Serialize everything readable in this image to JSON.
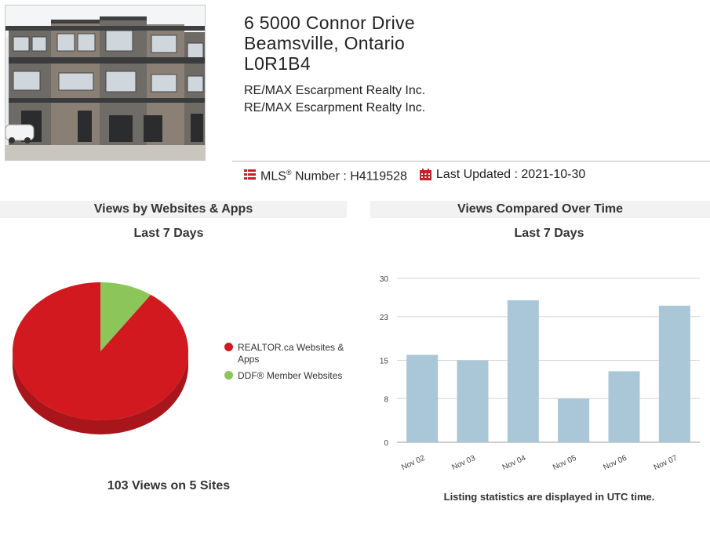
{
  "listing": {
    "address_line1": "6 5000 Connor Drive",
    "address_line2": "Beamsville, Ontario",
    "address_line3": "L0R1B4",
    "broker1": "RE/MAX Escarpment Realty Inc.",
    "broker2": "RE/MAX Escarpment Realty Inc.",
    "mls_label": "MLS",
    "mls_rest": " Number : H4119528",
    "updated": "Last Updated : 2021-10-30"
  },
  "colors": {
    "accent": "#c8202a",
    "bar": "#a9c7d6",
    "pie_red": "#d2191f",
    "pie_green": "#8cc65a"
  },
  "chart_data": [
    {
      "type": "pie",
      "title": "Views by Websites & Apps",
      "subtitle": "Last 7 Days",
      "labels": [
        "REALTOR.ca Websites & Apps",
        "DDF® Member Websites"
      ],
      "values": [
        93,
        10
      ],
      "colors": [
        "#d2191f",
        "#8cc65a"
      ],
      "legend": "right",
      "footer": "103 Views on 5 Sites"
    },
    {
      "type": "bar",
      "title": "Views Compared Over Time",
      "subtitle": "Last 7 Days",
      "categories": [
        "Nov 02",
        "Nov 03",
        "Nov 04",
        "Nov 05",
        "Nov 06",
        "Nov 07"
      ],
      "values": [
        16,
        15,
        26,
        8,
        13,
        25
      ],
      "ylim": [
        0,
        30
      ],
      "yticks": [
        "0",
        "8",
        "15",
        "23",
        "30"
      ],
      "grid": true,
      "footer": "Listing statistics are displayed in UTC time."
    }
  ]
}
